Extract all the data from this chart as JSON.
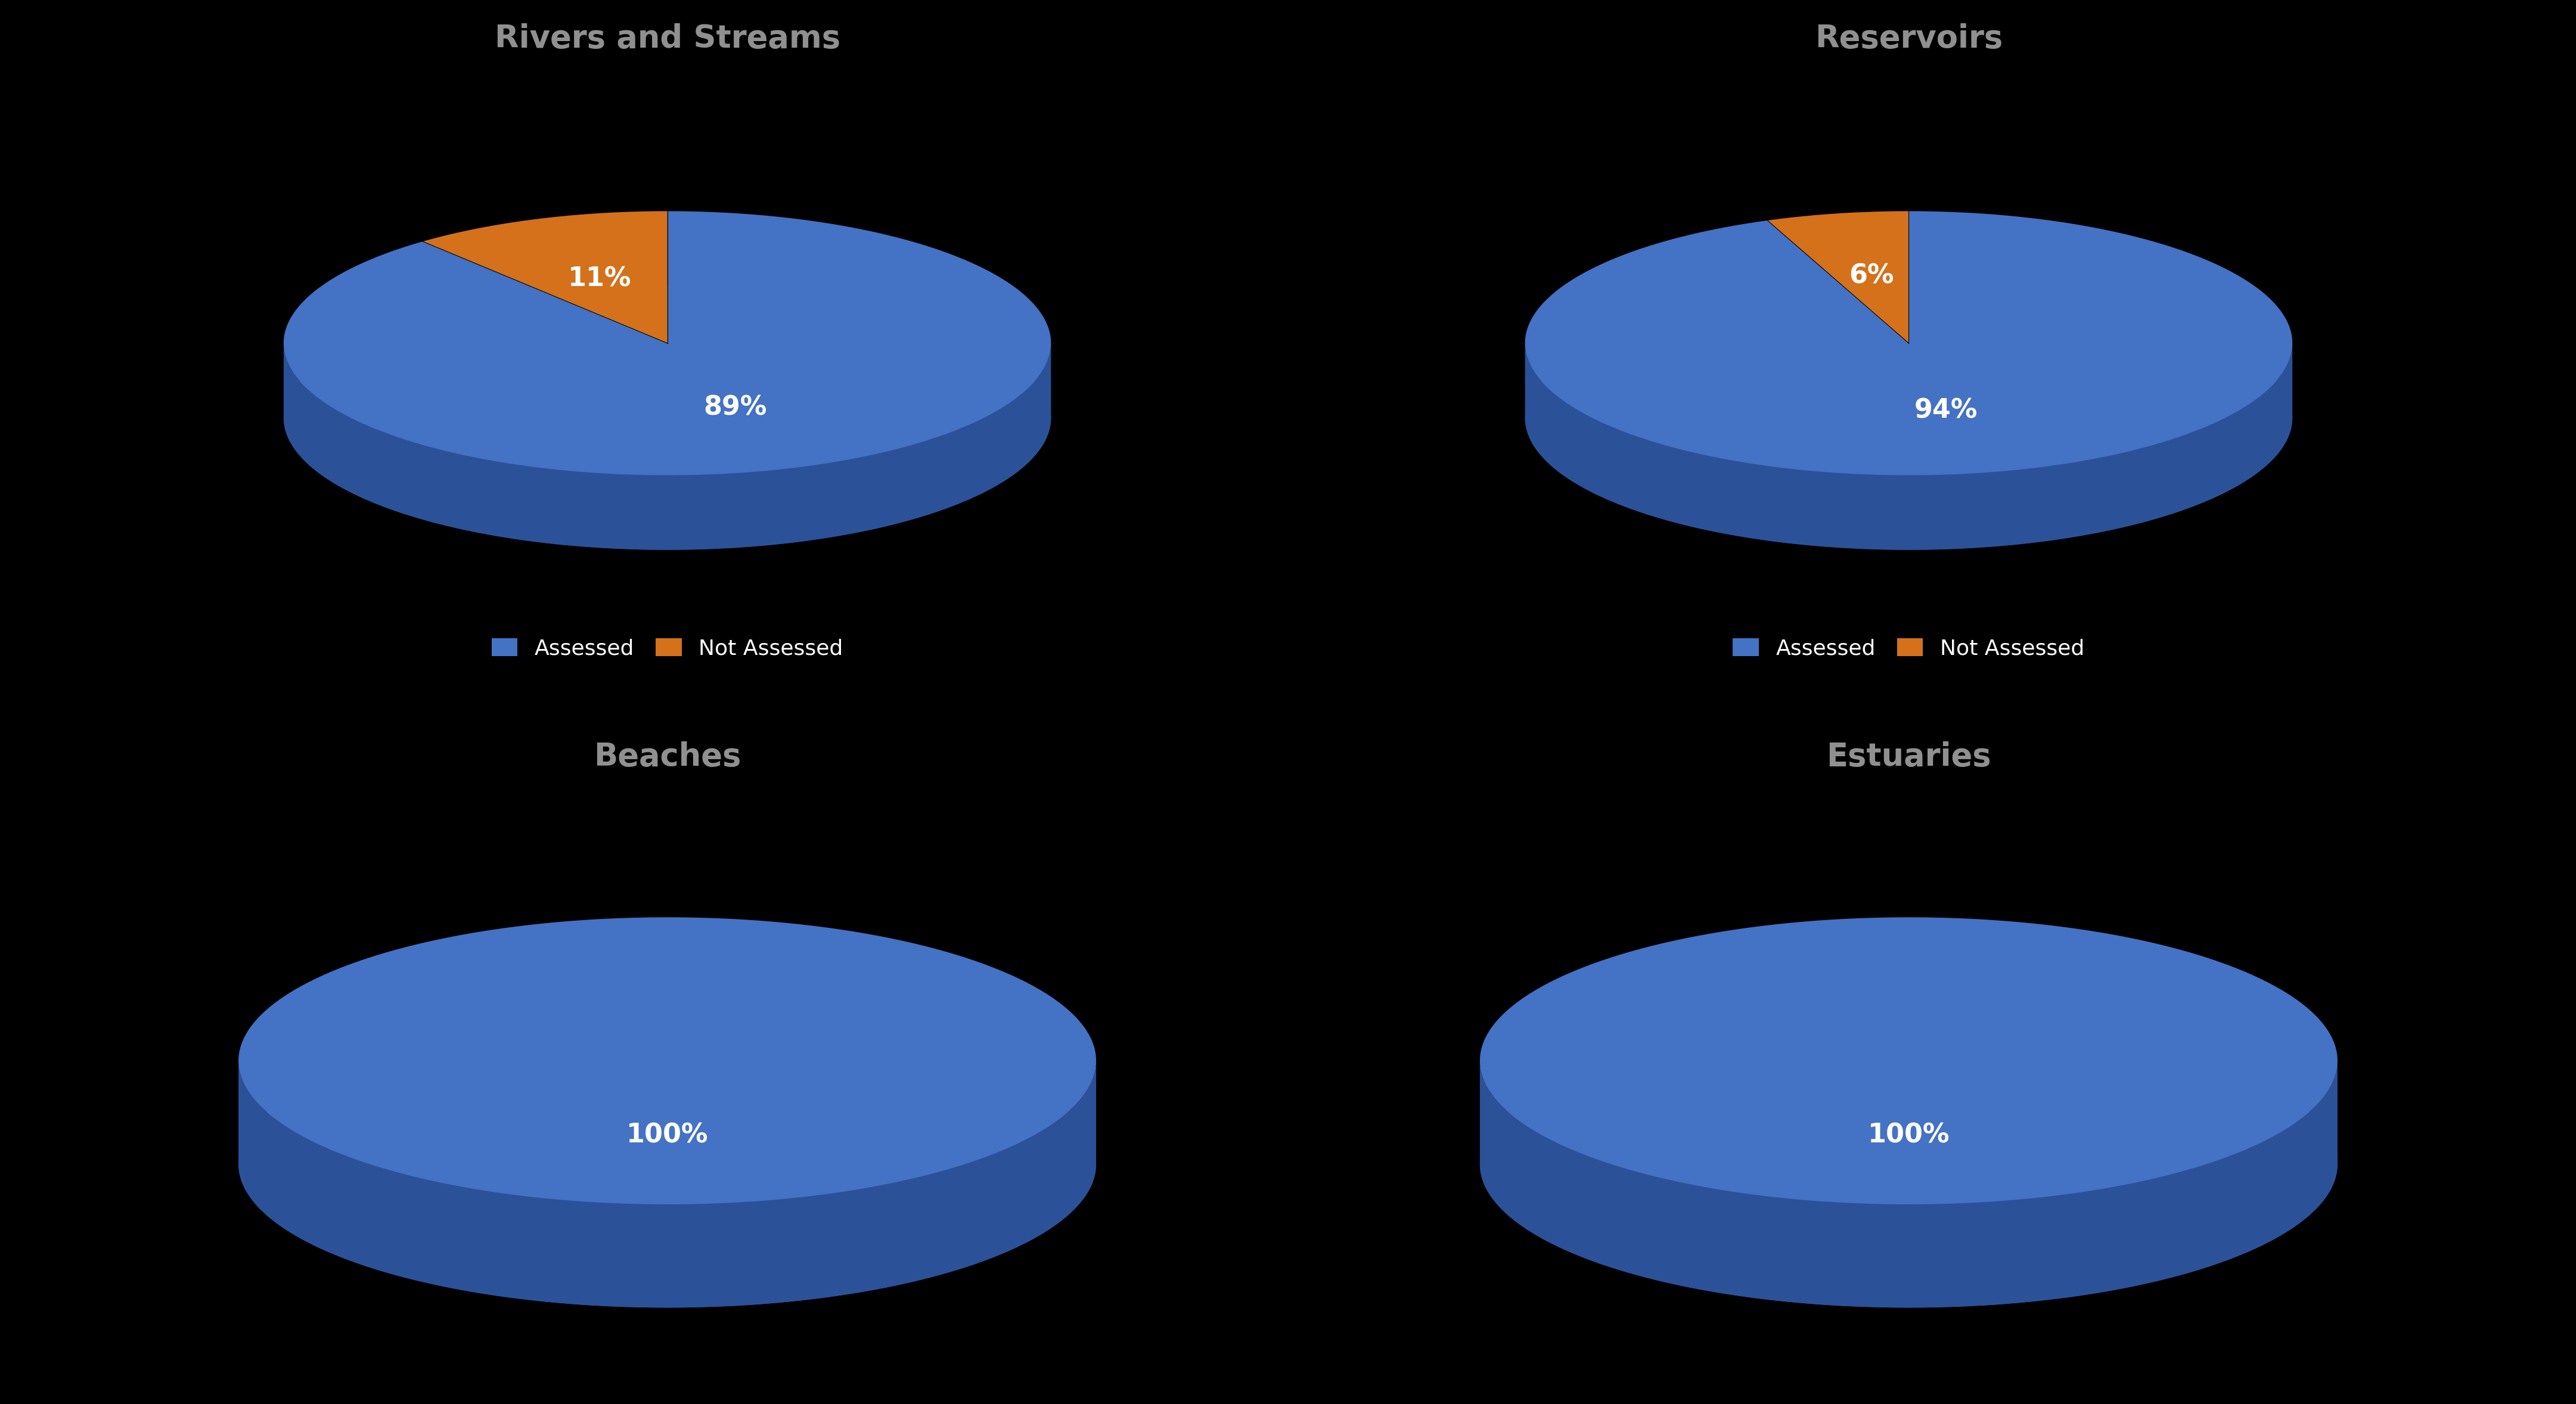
{
  "charts": [
    {
      "title": "Rivers and Streams",
      "values": [
        89,
        11
      ],
      "labels": [
        "89%",
        "11%"
      ],
      "colors_top": [
        "#4472C4",
        "#D4711A"
      ],
      "colors_side": [
        "#2B5199",
        "#2B5199"
      ],
      "legend_labels": [
        "Assessed",
        "Not Assessed"
      ],
      "legend_colors": [
        "#4472C4",
        "#D4711A"
      ],
      "row": 0,
      "col": 0,
      "has_legend": true
    },
    {
      "title": "Reservoirs",
      "values": [
        94,
        6
      ],
      "labels": [
        "94%",
        "6%"
      ],
      "colors_top": [
        "#4472C4",
        "#D4711A"
      ],
      "colors_side": [
        "#2B5199",
        "#2B5199"
      ],
      "legend_labels": [
        "Assessed",
        "Not Assessed"
      ],
      "legend_colors": [
        "#4472C4",
        "#D4711A"
      ],
      "row": 0,
      "col": 1,
      "has_legend": true
    },
    {
      "title": "Beaches",
      "values": [
        100
      ],
      "labels": [
        "100%"
      ],
      "colors_top": [
        "#4472C4"
      ],
      "colors_side": [
        "#2B5199"
      ],
      "legend_labels": [],
      "legend_colors": [],
      "row": 1,
      "col": 0,
      "has_legend": false
    },
    {
      "title": "Estuaries",
      "values": [
        100
      ],
      "labels": [
        "100%"
      ],
      "colors_top": [
        "#4472C4"
      ],
      "colors_side": [
        "#2B5199"
      ],
      "legend_labels": [],
      "legend_colors": [],
      "row": 1,
      "col": 1,
      "has_legend": false
    }
  ],
  "bg_color": "#000000",
  "title_color": "#909090",
  "title_fontsize": 38,
  "label_fontsize": 32,
  "legend_fontsize": 26,
  "fig_width": 43.22,
  "fig_height": 23.56
}
